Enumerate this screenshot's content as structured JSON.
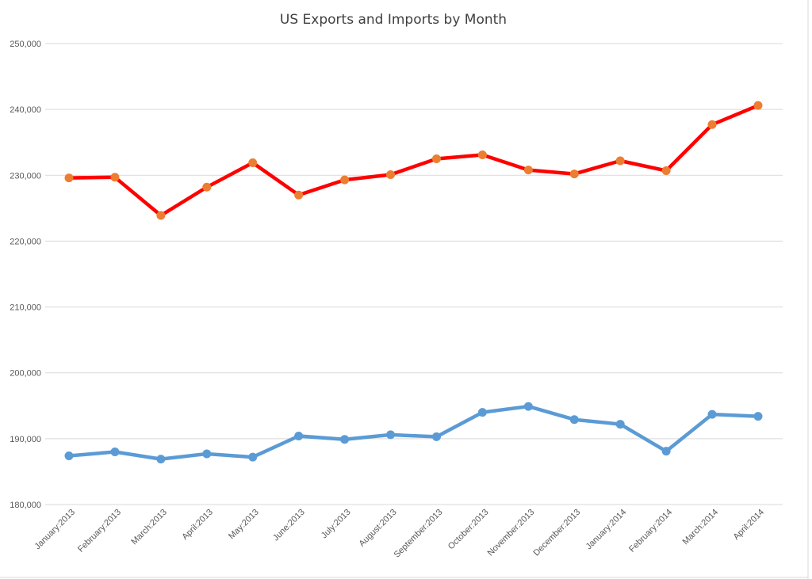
{
  "chart_data": {
    "type": "line",
    "title": "US Exports and Imports by Month",
    "xlabel": "",
    "ylabel": "",
    "ylim": [
      180000,
      250000
    ],
    "yticks": [
      180000,
      190000,
      200000,
      210000,
      220000,
      230000,
      240000,
      250000
    ],
    "ytick_labels": [
      "180,000",
      "190,000",
      "200,000",
      "210,000",
      "220,000",
      "230,000",
      "240,000",
      "250,000"
    ],
    "grid": true,
    "legend": "none",
    "categories": [
      "January:2013",
      "February:2013",
      "March:2013",
      "April:2013",
      "May:2013",
      "June:2013",
      "July:2013",
      "August:2013",
      "September:2013",
      "October:2013",
      "November:2013",
      "December:2013",
      "January:2014",
      "February:2014",
      "March:2014",
      "April:2014"
    ],
    "series": [
      {
        "line_color": "#ff0000",
        "marker_color": "#ed7d31",
        "values": [
          229600,
          229700,
          223900,
          228200,
          231900,
          227000,
          229300,
          230100,
          232500,
          233100,
          230800,
          230200,
          232200,
          230700,
          237700,
          240600
        ]
      },
      {
        "line_color": "#5b9bd5",
        "marker_color": "#5b9bd5",
        "values": [
          187400,
          188000,
          186900,
          187700,
          187200,
          190400,
          189900,
          190600,
          190300,
          194000,
          194900,
          192900,
          192200,
          188100,
          193700,
          193400
        ]
      }
    ]
  }
}
